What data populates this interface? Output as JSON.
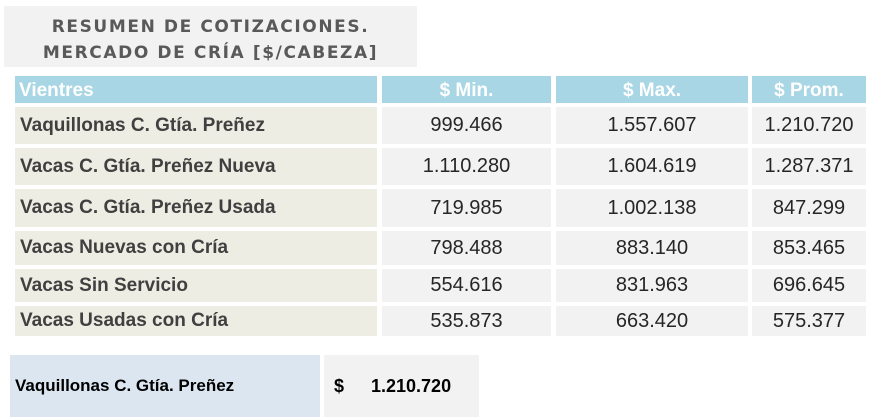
{
  "title": {
    "line1": "RESUMEN DE COTIZACIONES.",
    "line2": "MERCADO DE CRÍA [$/CABEZA]"
  },
  "table": {
    "headers": [
      "Vientres",
      "$ Min.",
      "$ Max.",
      "$ Prom."
    ],
    "rows": [
      {
        "name": "Vaquillonas C. Gtía. Preñez",
        "min": "999.466",
        "max": "1.557.607",
        "prom": "1.210.720"
      },
      {
        "name": "Vacas C. Gtía. Preñez Nueva",
        "min": "1.110.280",
        "max": "1.604.619",
        "prom": "1.287.371"
      },
      {
        "name": "Vacas C. Gtía. Preñez Usada",
        "min": "719.985",
        "max": "1.002.138",
        "prom": "847.299"
      },
      {
        "name": "Vacas Nuevas con Cría",
        "min": "798.488",
        "max": "883.140",
        "prom": "853.465"
      },
      {
        "name": "Vacas Sin Servicio",
        "min": "554.616",
        "max": "831.963",
        "prom": "696.645"
      },
      {
        "name": "Vacas Usadas con Cría",
        "min": "535.873",
        "max": "663.420",
        "prom": "575.377"
      }
    ]
  },
  "summary": {
    "label": "Vaquillonas C. Gtía. Preñez",
    "currency": "$",
    "value": "1.210.720"
  },
  "colors": {
    "header_bg": "#a9d6e4",
    "name_cell_bg": "#eeede3",
    "value_cell_bg": "#f2f2f2",
    "summary_label_bg": "#dce6f1",
    "title_text": "#595959"
  }
}
